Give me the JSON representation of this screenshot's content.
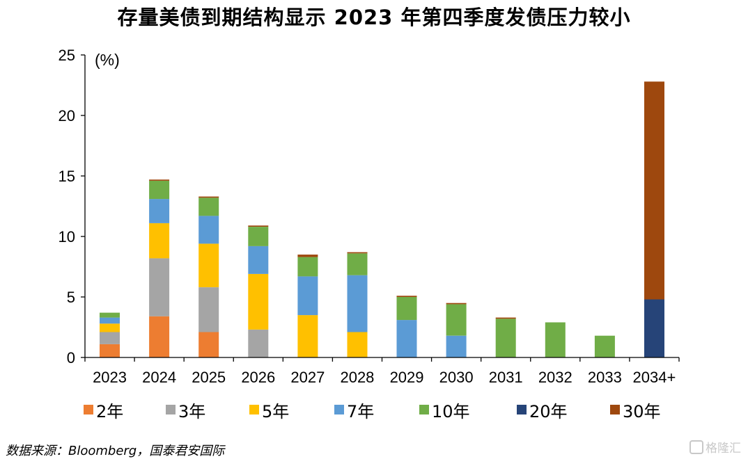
{
  "chart_data": {
    "type": "bar",
    "stacked": true,
    "title": "存量美债到期结构显示 2023 年第四季度发债压力较小",
    "ylabel": "(%)",
    "xlabel": "",
    "ylim": [
      0,
      25
    ],
    "yticks": [
      0,
      5,
      10,
      15,
      20,
      25
    ],
    "grid": false,
    "legend_position": "bottom",
    "categories": [
      "2023",
      "2024",
      "2025",
      "2026",
      "2027",
      "2028",
      "2029",
      "2030",
      "2031",
      "2032",
      "2033",
      "2034+"
    ],
    "series": [
      {
        "name": "2年",
        "color": "#ED7D31",
        "values": [
          1.1,
          3.4,
          2.1,
          0,
          0,
          0,
          0,
          0,
          0,
          0,
          0,
          0
        ]
      },
      {
        "name": "3年",
        "color": "#A5A5A5",
        "values": [
          1.0,
          4.8,
          3.7,
          2.3,
          0,
          0,
          0,
          0,
          0,
          0,
          0,
          0
        ]
      },
      {
        "name": "5年",
        "color": "#FFC000",
        "values": [
          0.7,
          2.9,
          3.6,
          4.6,
          3.5,
          2.1,
          0,
          0,
          0,
          0,
          0,
          0
        ]
      },
      {
        "name": "7年",
        "color": "#5B9BD5",
        "values": [
          0.5,
          2.0,
          2.3,
          2.3,
          3.2,
          4.7,
          3.1,
          1.8,
          0,
          0,
          0,
          0
        ]
      },
      {
        "name": "10年",
        "color": "#70AD47",
        "values": [
          0.4,
          1.5,
          1.5,
          1.6,
          1.6,
          1.8,
          1.9,
          2.6,
          3.2,
          2.9,
          1.8,
          0
        ]
      },
      {
        "name": "20年",
        "color": "#264478",
        "values": [
          0,
          0,
          0,
          0,
          0,
          0,
          0,
          0,
          0,
          0,
          0,
          4.8
        ]
      },
      {
        "name": "30年",
        "color": "#9E480E",
        "values": [
          0,
          0.1,
          0.1,
          0.1,
          0.2,
          0.1,
          0.1,
          0.1,
          0.1,
          0,
          0,
          18.0
        ]
      }
    ]
  },
  "source_note": "数据来源：Bloomberg，国泰君安国际",
  "watermark": "格隆汇"
}
